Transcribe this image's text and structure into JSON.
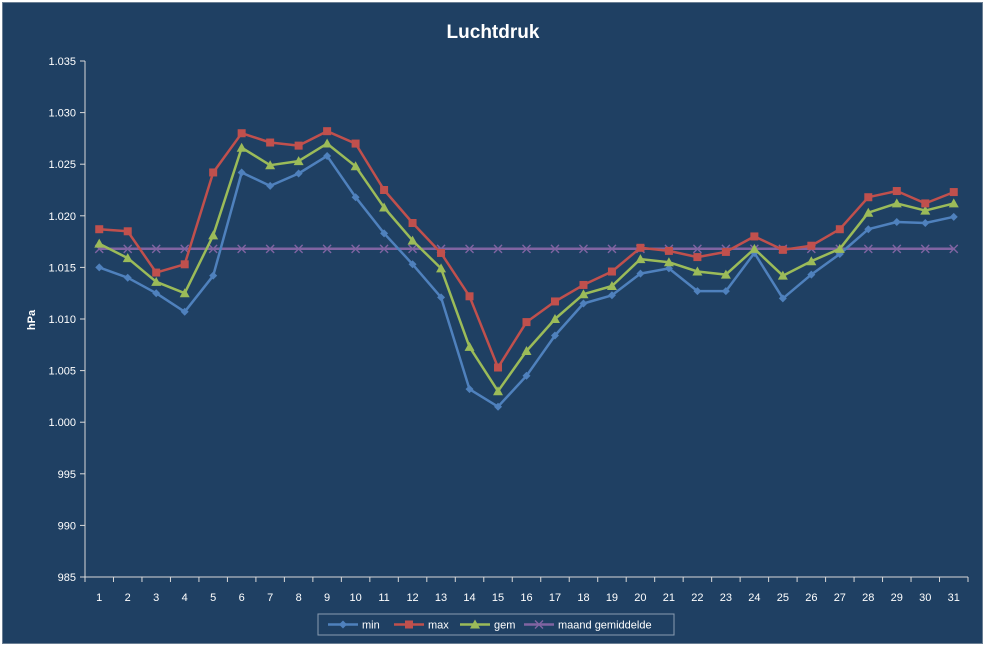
{
  "chart_data": {
    "type": "line",
    "title": "Luchtdruk",
    "xlabel": "",
    "ylabel": "hPa",
    "ylim": [
      985,
      1035
    ],
    "ytick_step": 5,
    "ytick_labels": [
      "985",
      "990",
      "995",
      "1.000",
      "1.005",
      "1.010",
      "1.015",
      "1.020",
      "1.025",
      "1.030",
      "1.035"
    ],
    "categories": [
      "1",
      "2",
      "3",
      "4",
      "5",
      "6",
      "7",
      "8",
      "9",
      "10",
      "11",
      "12",
      "13",
      "14",
      "15",
      "16",
      "17",
      "18",
      "19",
      "20",
      "21",
      "22",
      "23",
      "24",
      "25",
      "26",
      "27",
      "28",
      "29",
      "30",
      "31"
    ],
    "grid": false,
    "legend_position": "bottom",
    "series": [
      {
        "name": "min",
        "color": "#4f81bd",
        "marker": "diamond",
        "values": [
          1015.0,
          1014.0,
          1012.5,
          1010.7,
          1014.2,
          1024.2,
          1022.9,
          1024.1,
          1025.8,
          1021.8,
          1018.3,
          1015.3,
          1012.1,
          1003.2,
          1001.5,
          1004.5,
          1008.4,
          1011.5,
          1012.3,
          1014.4,
          1014.9,
          1012.7,
          1012.7,
          1016.4,
          1012.0,
          1014.3,
          1016.3,
          1018.7,
          1019.4,
          1019.3,
          1019.9
        ]
      },
      {
        "name": "max",
        "color": "#c0504d",
        "marker": "square",
        "values": [
          1018.7,
          1018.5,
          1014.5,
          1015.3,
          1024.2,
          1028.0,
          1027.1,
          1026.8,
          1028.2,
          1027.0,
          1022.5,
          1019.3,
          1016.4,
          1012.2,
          1005.3,
          1009.7,
          1011.7,
          1013.3,
          1014.6,
          1016.9,
          1016.6,
          1016.0,
          1016.5,
          1018.0,
          1016.7,
          1017.1,
          1018.7,
          1021.8,
          1022.4,
          1021.2,
          1022.3
        ]
      },
      {
        "name": "gem",
        "color": "#9bbb59",
        "marker": "triangle",
        "values": [
          1017.3,
          1015.9,
          1013.6,
          1012.5,
          1018.1,
          1026.6,
          1024.9,
          1025.3,
          1027.0,
          1024.8,
          1020.8,
          1017.6,
          1014.9,
          1007.3,
          1003.0,
          1006.9,
          1010.0,
          1012.4,
          1013.2,
          1015.8,
          1015.5,
          1014.6,
          1014.3,
          1016.8,
          1014.2,
          1015.6,
          1016.8,
          1020.3,
          1021.2,
          1020.5,
          1021.2
        ]
      },
      {
        "name": "maand gemiddelde",
        "color": "#8064a2",
        "marker": "x",
        "values": [
          1016.8,
          1016.8,
          1016.8,
          1016.8,
          1016.8,
          1016.8,
          1016.8,
          1016.8,
          1016.8,
          1016.8,
          1016.8,
          1016.8,
          1016.8,
          1016.8,
          1016.8,
          1016.8,
          1016.8,
          1016.8,
          1016.8,
          1016.8,
          1016.8,
          1016.8,
          1016.8,
          1016.8,
          1016.8,
          1016.8,
          1016.8,
          1016.8,
          1016.8,
          1016.8,
          1016.8
        ]
      }
    ]
  }
}
